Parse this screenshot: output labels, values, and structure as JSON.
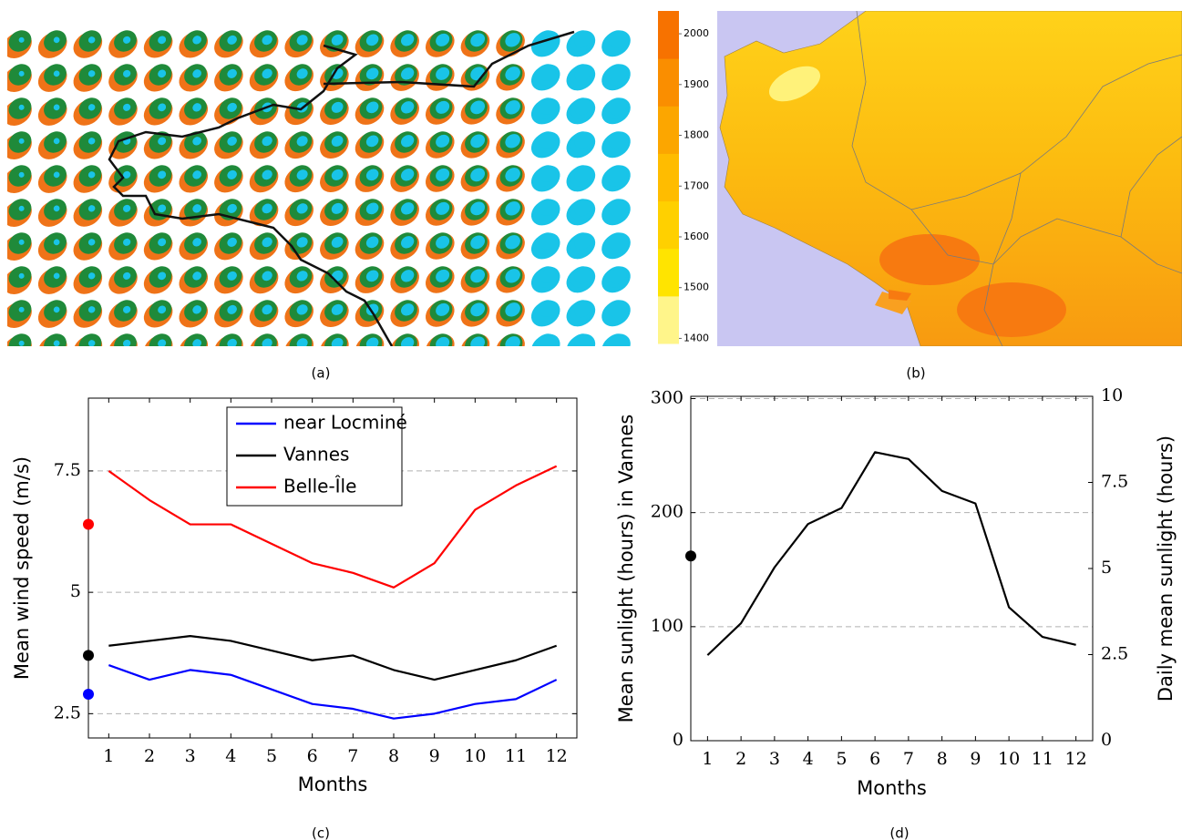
{
  "chart_data": [
    {
      "type": "map",
      "caption": "(a)"
    },
    {
      "type": "map",
      "caption": "(b)",
      "colorbar": {
        "lim": [
          1390,
          2045
        ],
        "ticks": [
          1400,
          1500,
          1600,
          1700,
          1800,
          1900,
          2000
        ],
        "colors": [
          "#fff58a",
          "#ffe400",
          "#ffd000",
          "#ffbc00",
          "#fca600",
          "#fa8e00",
          "#f77200"
        ]
      }
    },
    {
      "type": "line",
      "caption": "(c)",
      "xlabel": "Months",
      "ylabel": "Mean wind speed (m/s)",
      "x": [
        1,
        2,
        3,
        4,
        5,
        6,
        7,
        8,
        9,
        10,
        11,
        12
      ],
      "xlim": [
        0.5,
        12.5
      ],
      "xticks": [
        1,
        2,
        3,
        4,
        5,
        6,
        7,
        8,
        9,
        10,
        11,
        12
      ],
      "ylim": [
        2,
        9
      ],
      "yticks": [
        2.5,
        5,
        7.5
      ],
      "grid": true,
      "legend": "top-center",
      "series": [
        {
          "name": "near Locminé",
          "color": "#0000ff",
          "values": [
            3.5,
            3.2,
            3.4,
            3.3,
            3.0,
            2.7,
            2.6,
            2.4,
            2.5,
            2.7,
            2.8,
            3.2
          ],
          "dot": 2.9
        },
        {
          "name": "Vannes",
          "color": "#000000",
          "values": [
            3.9,
            4.0,
            4.1,
            4.0,
            3.8,
            3.6,
            3.7,
            3.4,
            3.2,
            3.4,
            3.6,
            3.9
          ],
          "dot": 3.7
        },
        {
          "name": "Belle-Île",
          "color": "#ff0000",
          "values": [
            7.5,
            6.9,
            6.4,
            6.4,
            6.0,
            5.6,
            5.4,
            5.1,
            5.6,
            6.7,
            7.2,
            7.6
          ],
          "dot": 6.4
        }
      ]
    },
    {
      "type": "line",
      "caption": "(d)",
      "xlabel": "Months",
      "ylabel": "Mean sunlight (hours) in Vannes",
      "y2label": "Daily mean sunlight (hours)",
      "x": [
        1,
        2,
        3,
        4,
        5,
        6,
        7,
        8,
        9,
        10,
        11,
        12
      ],
      "xlim": [
        0.5,
        12.5
      ],
      "xticks": [
        1,
        2,
        3,
        4,
        5,
        6,
        7,
        8,
        9,
        10,
        11,
        12
      ],
      "ylim": [
        0,
        302
      ],
      "yticks": [
        0,
        100,
        200,
        300
      ],
      "y2lim": [
        0,
        10
      ],
      "y2ticks": [
        0,
        2.5,
        5,
        7.5,
        10
      ],
      "grid": true,
      "series": [
        {
          "color": "#000000",
          "values": [
            75,
            103,
            152,
            190,
            204,
            253,
            247,
            219,
            208,
            117,
            91,
            84
          ],
          "dot": 162
        }
      ]
    }
  ]
}
